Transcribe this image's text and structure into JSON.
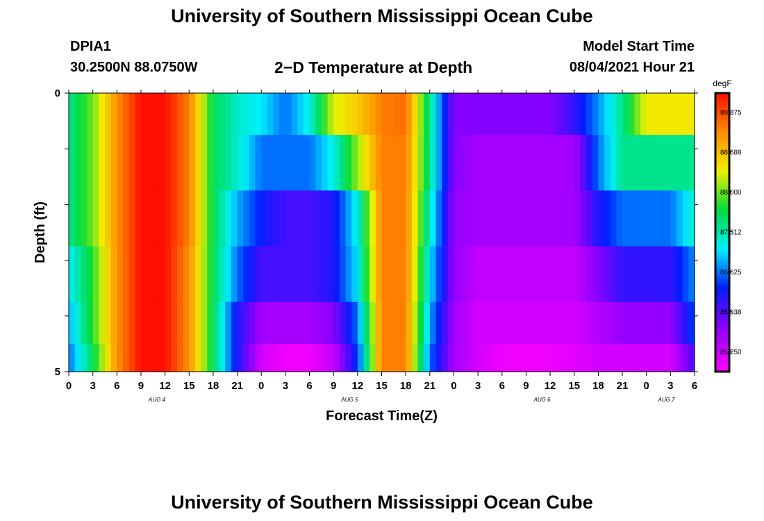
{
  "header": {
    "title": "University of Southern Mississippi Ocean Cube",
    "footer_title": "University of Southern Mississippi Ocean Cube",
    "station": "DPIA1",
    "coords": "30.2500N  88.0750W",
    "subtitle": "2−D Temperature at Depth",
    "model_label": "Model Start Time",
    "model_time": "08/04/2021 Hour 21"
  },
  "chart_data": {
    "type": "heatmap",
    "xlabel": "Forecast Time(Z)",
    "ylabel": "Depth (ft)",
    "x_unit": "forecast hour (0 = Aug 4 00Z)",
    "xlim": [
      0,
      78
    ],
    "ylim": [
      0,
      5
    ],
    "x_tick_labels": [
      "0",
      "3",
      "6",
      "9",
      "12",
      "15",
      "18",
      "21",
      "0",
      "3",
      "6",
      "9",
      "12",
      "15",
      "18",
      "21",
      "0",
      "3",
      "6",
      "9",
      "12",
      "15",
      "18",
      "21",
      "0",
      "3",
      "6"
    ],
    "y_tick_labels": [
      "0",
      "5"
    ],
    "day_labels": [
      {
        "text": "AUG  4",
        "hour": 11
      },
      {
        "text": "AUG  5",
        "hour": 35
      },
      {
        "text": "AUG  6",
        "hour": 59
      },
      {
        "text": "AUG  7",
        "hour": 74.5
      }
    ],
    "colorbar": {
      "unit": "degF",
      "min": 84.9,
      "max": 89.7,
      "tick_labels": [
        "89.375",
        "88.688",
        "88.000",
        "87.312",
        "86.625",
        "85.938",
        "85.250"
      ],
      "tick_values": [
        89.375,
        88.688,
        88.0,
        87.312,
        86.625,
        85.938,
        85.25
      ]
    },
    "depth_rows": [
      0.25,
      1.25,
      2.25,
      3.25,
      4.25,
      4.75
    ],
    "hours": [
      0,
      3,
      6,
      9,
      12,
      15,
      18,
      21,
      24,
      27,
      30,
      33,
      36,
      39,
      42,
      45,
      48,
      51,
      54,
      57,
      60,
      63,
      66,
      69,
      72,
      75,
      78
    ],
    "values": [
      [
        87.4,
        88.0,
        89.0,
        89.7,
        89.7,
        89.1,
        87.6,
        87.2,
        87.0,
        86.6,
        87.1,
        88.3,
        88.6,
        89.1,
        89.2,
        87.4,
        85.7,
        85.7,
        85.7,
        85.7,
        85.7,
        86.1,
        86.7,
        87.4,
        88.4,
        88.4,
        88.4
      ],
      [
        87.4,
        88.0,
        89.0,
        89.7,
        89.7,
        89.1,
        87.6,
        87.2,
        86.6,
        86.6,
        86.6,
        87.1,
        88.1,
        89.1,
        89.1,
        87.4,
        85.7,
        85.5,
        85.5,
        85.5,
        85.5,
        85.5,
        86.6,
        87.4,
        87.4,
        87.4,
        87.4
      ],
      [
        87.4,
        88.0,
        89.0,
        89.7,
        89.7,
        89.1,
        87.6,
        86.8,
        86.3,
        86.0,
        86.0,
        86.2,
        87.1,
        89.1,
        89.1,
        87.2,
        85.6,
        85.5,
        85.5,
        85.5,
        85.5,
        85.5,
        86.2,
        86.6,
        86.6,
        86.6,
        87.2
      ],
      [
        87.0,
        87.8,
        89.0,
        89.7,
        89.7,
        89.0,
        87.6,
        86.6,
        86.0,
        86.0,
        86.0,
        86.2,
        87.0,
        89.1,
        89.1,
        87.0,
        85.6,
        85.3,
        85.3,
        85.3,
        85.3,
        85.3,
        85.7,
        86.1,
        86.1,
        86.1,
        86.7
      ],
      [
        86.8,
        87.8,
        89.0,
        89.7,
        89.7,
        89.0,
        87.6,
        86.2,
        85.5,
        85.5,
        85.5,
        85.7,
        86.6,
        89.1,
        89.1,
        86.8,
        85.5,
        85.2,
        85.2,
        85.2,
        85.2,
        85.2,
        85.4,
        85.6,
        85.6,
        85.6,
        86.5
      ],
      [
        86.6,
        87.6,
        89.0,
        89.7,
        89.7,
        89.0,
        87.6,
        86.2,
        85.2,
        85.0,
        85.0,
        85.3,
        86.4,
        89.1,
        89.1,
        86.6,
        85.5,
        85.2,
        85.0,
        85.0,
        85.0,
        85.1,
        85.2,
        85.2,
        85.2,
        85.2,
        86.0
      ]
    ]
  }
}
